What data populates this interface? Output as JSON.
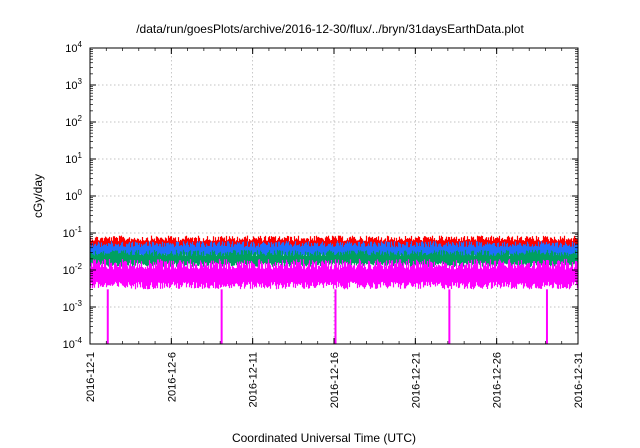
{
  "chart_data": {
    "type": "line",
    "title": "/data/run/goesPlots/archive/2016-12-30/flux/../bryn/31daysEarthData.plot",
    "xlabel": "Coordinated Universal Time (UTC)",
    "ylabel": "cGy/day",
    "x_axis": {
      "kind": "date",
      "range": [
        "2016-12-01",
        "2016-12-31"
      ],
      "ticks": [
        "2016-12-1",
        "2016-12-6",
        "2016-12-11",
        "2016-12-16",
        "2016-12-21",
        "2016-12-26",
        "2016-12-31"
      ]
    },
    "y_axis": {
      "scale": "log",
      "range": [
        0.0001,
        10000
      ],
      "tick_exponents": [
        -4,
        -3,
        -2,
        -1,
        0,
        1,
        2,
        3,
        4
      ]
    },
    "grid": true,
    "legend": "none",
    "series": [
      {
        "color": "#ff0000",
        "band": [
          0.03,
          0.085
        ]
      },
      {
        "color": "#1f6fff",
        "band": [
          0.02,
          0.06
        ]
      },
      {
        "color": "#00a060",
        "band": [
          0.012,
          0.035
        ]
      },
      {
        "color": "#ff00ff",
        "band": [
          0.003,
          0.02
        ]
      }
    ],
    "dropouts": {
      "color": "#ff00ff",
      "value": 0.0001,
      "dates": [
        "2016-12-02",
        "2016-12-09",
        "2016-12-16",
        "2016-12-23",
        "2016-12-29"
      ]
    }
  }
}
